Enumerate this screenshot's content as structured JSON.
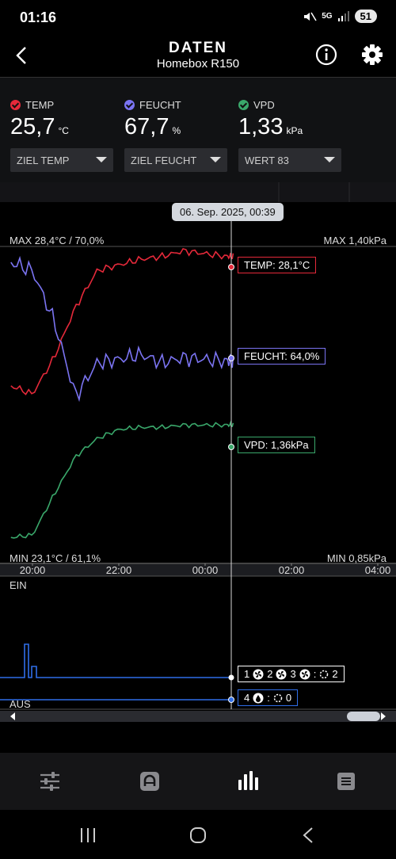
{
  "status_bar": {
    "time": "01:16",
    "network": "5G",
    "battery": "51"
  },
  "header": {
    "title": "DATEN",
    "subtitle": "Homebox R150",
    "back_icon": "chevron-left-icon",
    "info_icon": "info-icon",
    "settings_icon": "gear-icon"
  },
  "metrics": [
    {
      "label": "TEMP",
      "value": "25,7",
      "unit": "°C",
      "color": "#e5293a",
      "dropdown": "ZIEL TEMP"
    },
    {
      "label": "FEUCHT",
      "value": "67,7",
      "unit": "%",
      "color": "#7b74f2",
      "dropdown": "ZIEL FEUCHT"
    },
    {
      "label": "VPD",
      "value": "1,33",
      "unit": "kPa",
      "color": "#3aa86b",
      "dropdown": "WERT 83"
    }
  ],
  "chart": {
    "tooltip_date": "06. Sep. 2025, 00:39",
    "max_left": "MAX 28,4°C / 70,0%",
    "max_right": "MAX 1,40kPa",
    "min_left": "MIN 23,1°C / 61,1%",
    "min_right": "MIN 0,85kPa",
    "temp_tag": "TEMP: 28,1°C",
    "feucht_tag": "FEUCHT: 64,0%",
    "vpd_tag": "VPD: 1,36kPa",
    "x_ticks": [
      "20:00",
      "22:00",
      "00:00",
      "02:00",
      "04:00"
    ],
    "ein_label": "EIN",
    "aus_label": "AUS",
    "device_tag_1": {
      "n1": "1",
      "n2": "2",
      "n3": "3",
      "n4": "2"
    },
    "device_tag_2": {
      "n1": "4",
      "n2": "0"
    },
    "colors": {
      "temp": "#e5293a",
      "feucht": "#7b74f2",
      "vpd": "#3aa86b",
      "device": "#2f6ee8"
    }
  },
  "chart_data": [
    {
      "type": "line",
      "x": [
        "19:30",
        "20:00",
        "20:30",
        "21:00",
        "21:30",
        "22:00",
        "22:30",
        "23:00",
        "23:30",
        "00:00",
        "00:30",
        "00:39"
      ],
      "series": [
        {
          "name": "TEMP",
          "unit": "°C",
          "values": [
            23.5,
            23.2,
            24.5,
            26.3,
            27.6,
            27.8,
            28.0,
            28.1,
            28.3,
            28.2,
            28.1,
            28.1
          ]
        },
        {
          "name": "FEUCHT",
          "unit": "%",
          "values": [
            70.0,
            69.5,
            66.5,
            62.0,
            64.0,
            64.2,
            64.5,
            64.0,
            64.3,
            64.2,
            64.1,
            64.0
          ]
        },
        {
          "name": "VPD",
          "unit": "kPa",
          "values": [
            0.86,
            0.87,
            1.05,
            1.22,
            1.3,
            1.34,
            1.35,
            1.35,
            1.36,
            1.36,
            1.36,
            1.36
          ]
        }
      ],
      "annotations": [
        "MAX 28,4°C / 70,0%",
        "MAX 1,40kPa",
        "MIN 23,1°C / 61,1%",
        "MIN 0,85kPa"
      ]
    }
  ],
  "bottom_nav": [
    {
      "name": "sliders-icon",
      "active": false
    },
    {
      "name": "device-icon",
      "active": false
    },
    {
      "name": "bar-chart-icon",
      "active": true
    },
    {
      "name": "list-icon",
      "active": false
    }
  ]
}
